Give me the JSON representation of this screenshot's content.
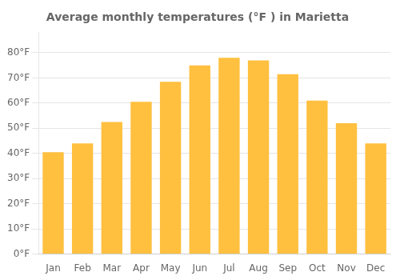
{
  "chart_data": {
    "type": "bar",
    "title": "Average monthly temperatures (°F ) in Marietta",
    "categories": [
      "Jan",
      "Feb",
      "Mar",
      "Apr",
      "May",
      "Jun",
      "Jul",
      "Aug",
      "Sep",
      "Oct",
      "Nov",
      "Dec"
    ],
    "values": [
      40.5,
      44.0,
      52.5,
      60.5,
      68.5,
      75.0,
      78.0,
      77.0,
      71.5,
      61.0,
      52.0,
      44.0
    ],
    "color": "#FFC040",
    "ylim": [
      0,
      88
    ],
    "yticks": [
      {
        "value": 0,
        "label": "0°F"
      },
      {
        "value": 10,
        "label": "10°F"
      },
      {
        "value": 20,
        "label": "20°F"
      },
      {
        "value": 30,
        "label": "30°F"
      },
      {
        "value": 40,
        "label": "40°F"
      },
      {
        "value": 50,
        "label": "50°F"
      },
      {
        "value": 60,
        "label": "60°F"
      },
      {
        "value": 70,
        "label": "70°F"
      },
      {
        "value": 80,
        "label": "80°F"
      }
    ],
    "grid": true
  }
}
